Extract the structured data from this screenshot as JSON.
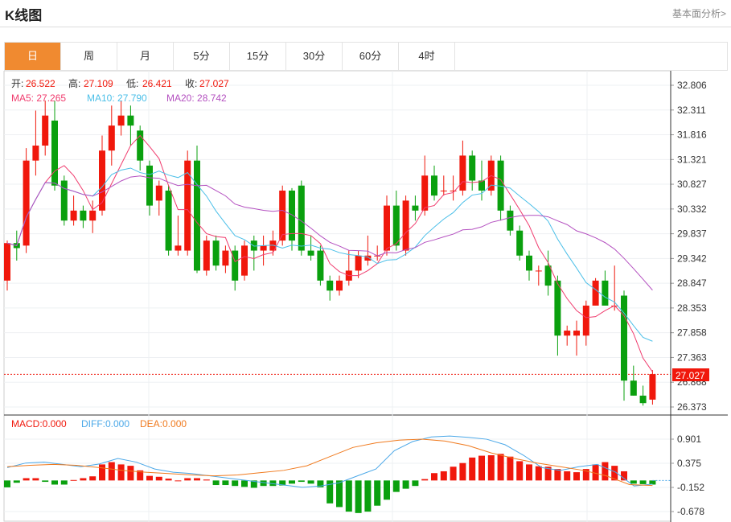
{
  "header": {
    "title": "K线图",
    "link": "基本面分析>"
  },
  "tabs": [
    {
      "label": "日",
      "active": true
    },
    {
      "label": "周"
    },
    {
      "label": "月"
    },
    {
      "label": "5分"
    },
    {
      "label": "15分"
    },
    {
      "label": "30分"
    },
    {
      "label": "60分"
    },
    {
      "label": "4时"
    }
  ],
  "legend": {
    "open_label": "开:",
    "open": "26.522",
    "high_label": "高:",
    "high": "27.109",
    "low_label": "低:",
    "low": "26.421",
    "close_label": "收:",
    "close": "27.027",
    "ma5": "MA5: 27.265",
    "ma10": "MA10: 27.790",
    "ma20": "MA20: 28.742"
  },
  "macd_legend": {
    "macd": "MACD:0.000",
    "diff": "DIFF:0.000",
    "dea": "DEA:0.000"
  },
  "colors": {
    "up": "#f0180c",
    "down": "#0aa00e",
    "ma5": "#f03c6e",
    "ma10": "#4bbfe8",
    "ma20": "#b450c0",
    "dea": "#f07a1e",
    "diff": "#4ba8e8",
    "active_tab": "#f08a30"
  },
  "chart_data": {
    "type": "candlestick",
    "price_ticks": [
      "32.806",
      "32.311",
      "31.816",
      "31.321",
      "30.827",
      "30.332",
      "29.837",
      "29.342",
      "28.847",
      "28.353",
      "27.858",
      "27.363",
      "26.868",
      "26.373"
    ],
    "price_range": [
      26.373,
      32.806
    ],
    "current_price": "27.027",
    "macd_ticks": [
      "0.901",
      "0.375",
      "-0.152",
      "-0.678"
    ],
    "macd_range": [
      -0.678,
      0.901
    ],
    "candles": [
      [
        28.9,
        29.65,
        29.7,
        28.7
      ],
      [
        29.65,
        29.55,
        29.9,
        29.3
      ],
      [
        29.6,
        31.3,
        31.55,
        29.45
      ],
      [
        31.3,
        31.6,
        32.3,
        31.0
      ],
      [
        31.6,
        32.2,
        32.5,
        31.4
      ],
      [
        32.1,
        30.8,
        32.5,
        30.7
      ],
      [
        30.9,
        30.1,
        31.0,
        30.0
      ],
      [
        30.1,
        30.3,
        30.6,
        30.0
      ],
      [
        30.3,
        30.1,
        30.4,
        29.95
      ],
      [
        30.1,
        30.3,
        30.5,
        29.85
      ],
      [
        30.3,
        31.5,
        31.8,
        30.2
      ],
      [
        31.5,
        32.0,
        32.4,
        31.2
      ],
      [
        32.0,
        32.2,
        32.5,
        31.8
      ],
      [
        32.2,
        32.0,
        32.4,
        31.6
      ],
      [
        31.9,
        31.3,
        32.0,
        31.1
      ],
      [
        31.2,
        30.4,
        31.3,
        30.2
      ],
      [
        30.5,
        30.8,
        30.9,
        30.2
      ],
      [
        30.7,
        29.5,
        30.8,
        29.4
      ],
      [
        29.5,
        29.6,
        30.2,
        29.4
      ],
      [
        29.5,
        31.3,
        31.5,
        29.4
      ],
      [
        31.3,
        29.1,
        31.6,
        29.05
      ],
      [
        29.1,
        29.7,
        29.8,
        29.0
      ],
      [
        29.7,
        29.2,
        29.8,
        29.1
      ],
      [
        29.2,
        29.5,
        29.6,
        29.05
      ],
      [
        29.5,
        28.9,
        29.6,
        28.7
      ],
      [
        29.0,
        29.6,
        29.7,
        28.9
      ],
      [
        29.7,
        29.5,
        29.8,
        29.1
      ],
      [
        29.5,
        29.6,
        29.8,
        29.2
      ],
      [
        29.5,
        29.7,
        29.9,
        29.4
      ],
      [
        29.7,
        30.7,
        30.8,
        29.6
      ],
      [
        30.7,
        29.7,
        30.75,
        29.5
      ],
      [
        30.8,
        29.5,
        30.9,
        29.4
      ],
      [
        29.5,
        29.4,
        29.8,
        29.3
      ],
      [
        29.5,
        28.9,
        29.6,
        28.8
      ],
      [
        28.9,
        28.7,
        29.0,
        28.5
      ],
      [
        28.7,
        28.9,
        29.0,
        28.6
      ],
      [
        28.9,
        29.1,
        29.5,
        28.8
      ],
      [
        29.1,
        29.4,
        29.5,
        28.95
      ],
      [
        29.3,
        29.4,
        29.8,
        29.2
      ],
      [
        29.4,
        29.4,
        29.6,
        29.3
      ],
      [
        29.5,
        30.4,
        30.6,
        29.4
      ],
      [
        30.4,
        29.6,
        30.7,
        29.5
      ],
      [
        29.5,
        30.5,
        30.6,
        29.4
      ],
      [
        30.4,
        30.3,
        30.6,
        30.1
      ],
      [
        30.3,
        31.0,
        31.4,
        30.2
      ],
      [
        31.0,
        30.6,
        31.2,
        30.5
      ],
      [
        30.7,
        30.7,
        31.0,
        30.6
      ],
      [
        30.7,
        30.7,
        31.0,
        30.5
      ],
      [
        30.7,
        31.4,
        31.7,
        30.6
      ],
      [
        31.4,
        30.9,
        31.5,
        30.7
      ],
      [
        30.9,
        30.7,
        31.3,
        30.5
      ],
      [
        30.7,
        31.3,
        31.4,
        30.6
      ],
      [
        31.3,
        30.3,
        31.4,
        30.1
      ],
      [
        30.3,
        29.9,
        30.4,
        29.8
      ],
      [
        29.9,
        29.4,
        30.0,
        29.3
      ],
      [
        29.4,
        29.1,
        29.5,
        28.9
      ],
      [
        29.1,
        29.1,
        29.2,
        28.8
      ],
      [
        29.2,
        28.8,
        29.5,
        28.6
      ],
      [
        28.9,
        27.8,
        29.0,
        27.4
      ],
      [
        27.8,
        27.9,
        28.0,
        27.6
      ],
      [
        27.8,
        27.9,
        28.1,
        27.4
      ],
      [
        27.8,
        28.4,
        28.5,
        27.6
      ],
      [
        28.4,
        28.9,
        28.95,
        28.4
      ],
      [
        28.9,
        28.4,
        29.1,
        28.4
      ],
      [
        28.4,
        28.4,
        29.2,
        28.3
      ],
      [
        28.6,
        26.9,
        28.7,
        26.5
      ],
      [
        26.9,
        26.6,
        27.2,
        26.6
      ],
      [
        26.6,
        26.45,
        26.8,
        26.4
      ],
      [
        26.52,
        27.03,
        27.11,
        26.42
      ]
    ],
    "macd_hist": [
      -0.15,
      -0.05,
      0.05,
      0.05,
      -0.03,
      -0.09,
      -0.09,
      0.01,
      0.05,
      0.09,
      0.35,
      0.4,
      0.35,
      0.32,
      0.22,
      0.1,
      0.08,
      0.04,
      0.0,
      0.05,
      0.05,
      0.02,
      -0.1,
      -0.1,
      -0.12,
      -0.14,
      -0.16,
      -0.12,
      -0.12,
      -0.11,
      -0.07,
      -0.03,
      -0.07,
      -0.15,
      -0.5,
      -0.58,
      -0.68,
      -0.71,
      -0.68,
      -0.55,
      -0.42,
      -0.25,
      -0.18,
      -0.12,
      0.03,
      0.16,
      0.2,
      0.3,
      0.38,
      0.5,
      0.54,
      0.55,
      0.58,
      0.52,
      0.42,
      0.35,
      0.31,
      0.3,
      0.25,
      0.2,
      0.18,
      0.25,
      0.35,
      0.4,
      0.32,
      0.2,
      -0.07,
      -0.08,
      -0.09
    ],
    "dif_line": [
      0.28,
      0.38,
      0.4,
      0.35,
      0.3,
      0.36,
      0.48,
      0.4,
      0.25,
      0.18,
      0.15,
      0.1,
      0.05,
      0.0,
      -0.05,
      -0.1,
      -0.15,
      -0.12,
      -0.05,
      0.1,
      0.25,
      0.65,
      0.85,
      0.95,
      0.97,
      0.94,
      0.9,
      0.78,
      0.55,
      0.28,
      0.22,
      0.3,
      0.35,
      0.18,
      -0.12,
      -0.08
    ],
    "dea_line": [
      0.3,
      0.33,
      0.35,
      0.33,
      0.28,
      0.22,
      0.18,
      0.15,
      0.12,
      0.1,
      0.12,
      0.17,
      0.22,
      0.32,
      0.52,
      0.72,
      0.82,
      0.88,
      0.9,
      0.86,
      0.76,
      0.6,
      0.48,
      0.38,
      0.3,
      0.22,
      0.1,
      -0.09,
      -0.11
    ]
  }
}
